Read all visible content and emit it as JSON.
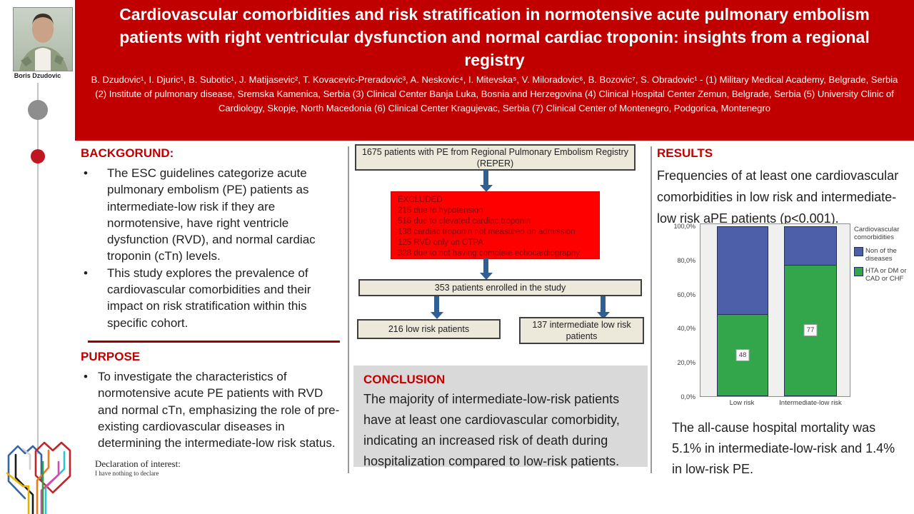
{
  "header": {
    "title": "Cardiovascular comorbidities and risk stratification in normotensive acute pulmonary embolism patients with right ventricular dysfunction and normal cardiac troponin: insights from a regional registry",
    "authors": "B. Dzudovic¹, I. Djuric¹, B. Subotic¹, J. Matijasevic², T. Kovacevic-Preradovic³, A. Neskovic⁴, I. Mitevska⁵, V. Miloradovic⁶, B. Bozovic⁷, S. Obradovic¹ - (1) Military Medical Academy, Belgrade, Serbia (2) Institute of pulmonary disease, Sremska Kamenica, Serbia (3) Clinical Center Banja Luka, Bosnia and Herzegovina (4) Clinical Hospital Center Zemun, Belgrade, Serbia (5) University Clinic of Cardiology, Skopje, North Macedonia (6) Clinical Center Kragujevac, Serbia (7) Clinical Center of Montenegro, Podgorica, Montenegro"
  },
  "sidebar": {
    "author_name": "Boris Dzudovic"
  },
  "background": {
    "heading": "BACKGORUND:",
    "bullets": [
      "The ESC guidelines categorize acute pulmonary embolism (PE) patients as intermediate-low risk if they are normotensive, have right ventricle dysfunction (RVD), and normal cardiac troponin (cTn) levels.",
      "This study explores the prevalence of cardiovascular comorbidities and their impact on risk stratification within this specific cohort."
    ]
  },
  "purpose": {
    "heading": "PURPOSE",
    "bullets": [
      "To investigate the characteristics of normotensive acute PE patients with RVD and normal cTn, emphasizing the role of pre-existing cardiovascular diseases in determining the intermediate-low risk status."
    ],
    "declaration_title": "Declaration of interest:",
    "declaration_text": "I have nothing to declare"
  },
  "flowchart": {
    "box_registry": "1675 patients with PE from Regional Pulmonary Embolism Registry (REPER)",
    "excluded": {
      "heading": "EXCLUDED",
      "items": [
        "215 due to hypotension",
        "516 due to elevated cardiac troponin",
        "138 cardiac troponin not measured on admission",
        "125 RVD only on CTPA",
        "328 due to not having complete echocardiography"
      ]
    },
    "box_enrolled": "353 patients enrolled in the study",
    "box_low_risk": "216 low risk patients",
    "box_intermediate": "137 intermediate low risk patients"
  },
  "conclusion": {
    "heading": "CONCLUSION",
    "text": "The majority of intermediate-low-risk patients have at least one cardiovascular comorbidity, indicating an increased risk of death during hospitalization compared to low-risk patients."
  },
  "results": {
    "heading": "RESULTS",
    "intro": "Frequencies of at least one cardiovascular comorbidities in low risk and intermediate-low risk aPE patients (p<0.001).",
    "mortality": "The all-cause hospital mortality was 5.1% in intermediate-low-risk and 1.4% in low-risk PE."
  },
  "chart_data": {
    "type": "bar",
    "stacked": true,
    "categories": [
      "Low risk",
      "Intermediate-low risk"
    ],
    "series": [
      {
        "name": "HTA or DM or CAD or CHF",
        "values": [
          48,
          77
        ],
        "color": "#33a64c"
      },
      {
        "name": "Non of the diseases",
        "values": [
          52,
          23
        ],
        "color": "#4c5fa8"
      }
    ],
    "bar_labels": [
      "48",
      "77"
    ],
    "legend_title": "Cardiovascular comorbidities",
    "legend_position": "right",
    "legend_entries": [
      {
        "label": "Non of the diseases",
        "color": "#4c5fa8"
      },
      {
        "label": "HTA or DM or CAD or CHF",
        "color": "#33a64c"
      }
    ],
    "y_ticks": [
      "100,0%",
      "80,0%",
      "60,0%",
      "40,0%",
      "20,0%",
      "0,0%"
    ],
    "ylim": [
      0,
      100
    ],
    "xlabel": "",
    "ylabel": "",
    "grid": false
  },
  "colors": {
    "header_red": "#c00000",
    "excluded_red": "#fe0000",
    "arrow_blue": "#2e6096",
    "conclusion_gray": "#d9d9d9",
    "bar_blue": "#4c5fa8",
    "bar_green": "#33a64c"
  }
}
